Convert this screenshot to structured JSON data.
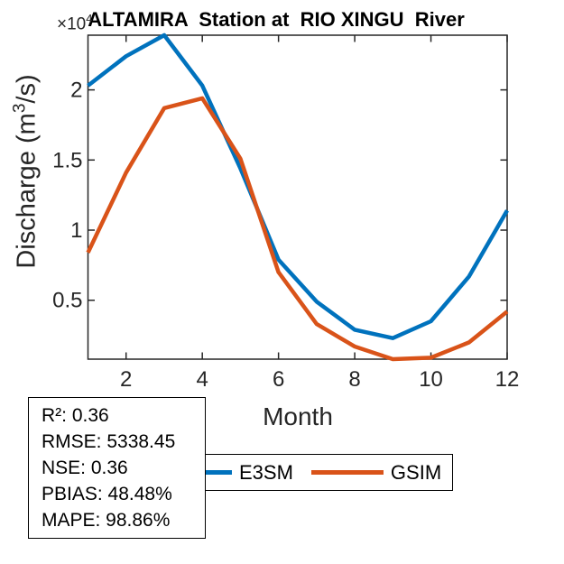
{
  "title": "ALTAMIRA  Station at  RIO XINGU  River",
  "axes": {
    "x_label": "Month",
    "y_label": {
      "pre": "Discharge (m",
      "sup": "3",
      "post": "/s)"
    },
    "y_multiplier": {
      "prefix": "×10",
      "exp": "4"
    }
  },
  "stats_box": {
    "lines": [
      "R²: 0.36",
      "RMSE: 5338.45",
      "NSE: 0.36",
      "PBIAS: 48.48%",
      "MAPE: 98.86%"
    ]
  },
  "legend": {
    "position": "below-axes-horizontal",
    "items": [
      {
        "label": "E3SM",
        "color": "#0072BD"
      },
      {
        "label": "GSIM",
        "color": "#D95319"
      }
    ]
  },
  "chart_data": {
    "type": "line",
    "title": "ALTAMIRA  Station at  RIO XINGU  River",
    "xlabel": "Month",
    "ylabel": "Discharge (m3/s) ×10^4",
    "x": [
      1,
      2,
      3,
      4,
      5,
      6,
      7,
      8,
      9,
      10,
      11,
      12
    ],
    "series": [
      {
        "name": "E3SM",
        "color": "#0072BD",
        "values": [
          2.03,
          2.24,
          2.39,
          2.03,
          1.44,
          0.79,
          0.49,
          0.29,
          0.23,
          0.35,
          0.67,
          1.14
        ]
      },
      {
        "name": "GSIM",
        "color": "#D95319",
        "values": [
          0.84,
          1.41,
          1.87,
          1.94,
          1.51,
          0.7,
          0.33,
          0.17,
          0.08,
          0.09,
          0.2,
          0.42
        ]
      }
    ],
    "xlim": [
      1,
      12
    ],
    "ylim": [
      0.08,
      2.39
    ],
    "xticks": [
      2,
      4,
      6,
      8,
      10,
      12
    ],
    "xtick_labels": [
      "2",
      "4",
      "6",
      "8",
      "10",
      "12"
    ],
    "yticks": [
      0.5,
      1,
      1.5,
      2
    ],
    "ytick_labels": [
      "0.5",
      "1",
      "1.5",
      "2"
    ],
    "grid": false,
    "unit_multiplier": 10000,
    "line_width": 4.5
  }
}
